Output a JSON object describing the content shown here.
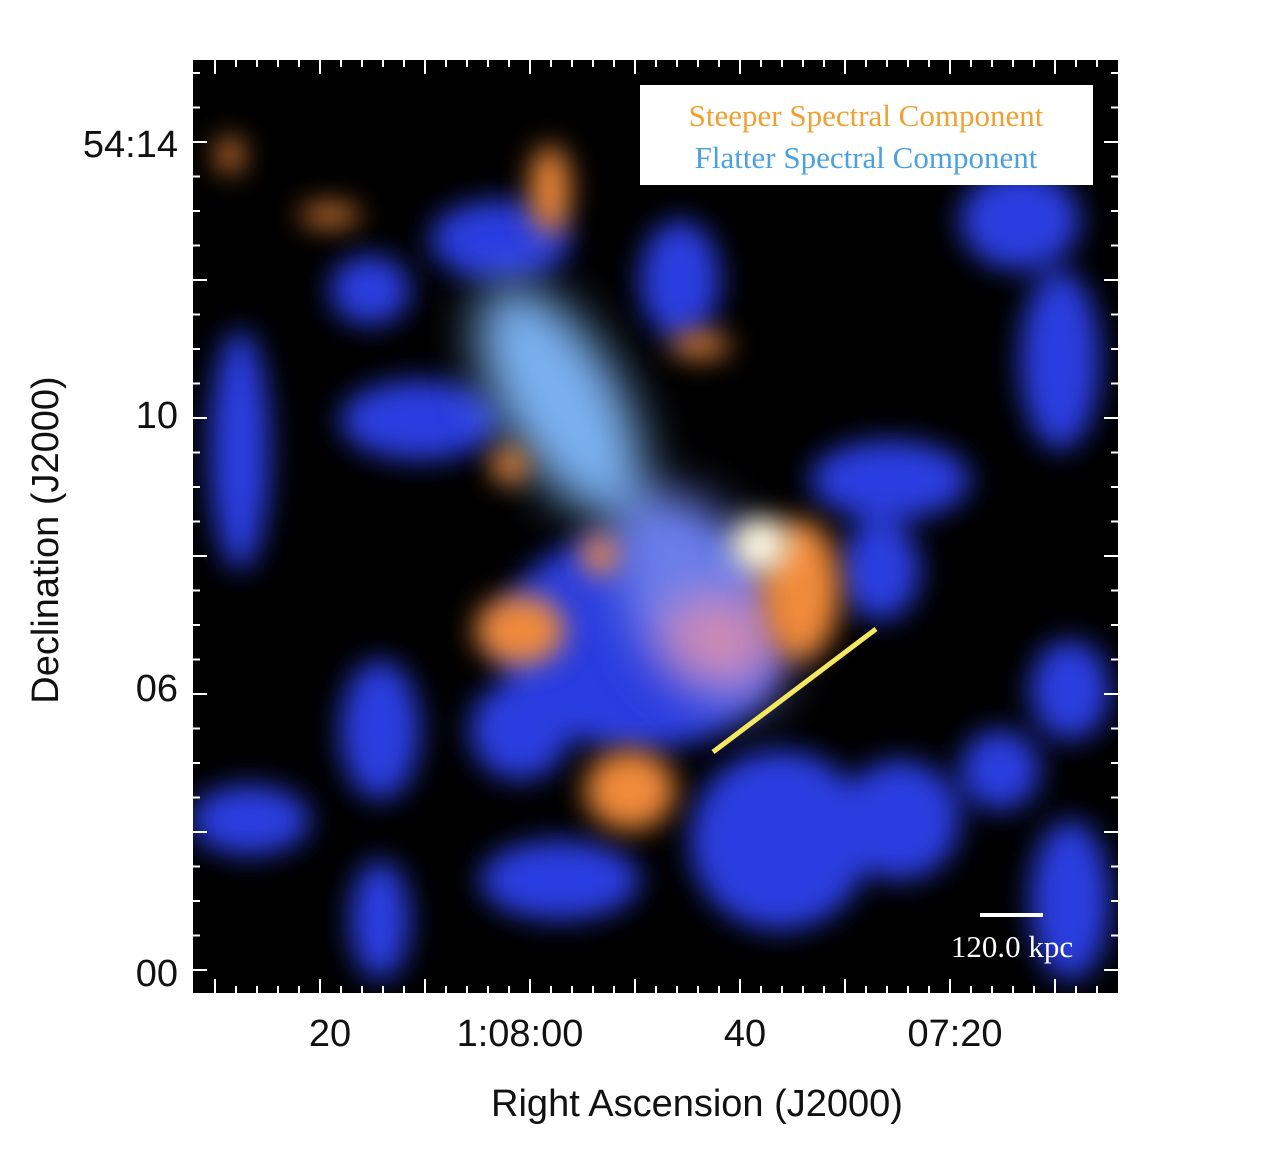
{
  "figure": {
    "legend": {
      "steeper": "Steeper Spectral Component",
      "flatter": "Flatter Spectral Component"
    },
    "scale_bar": "120.0 kpc",
    "x_axis": {
      "title": "Right Ascension  (J2000)",
      "ticks": [
        "20",
        "1:08:00",
        "40",
        "07:20"
      ]
    },
    "y_axis": {
      "title": "Declination (J2000)",
      "ticks": [
        "54:14",
        "10",
        "06",
        "00"
      ]
    }
  }
}
